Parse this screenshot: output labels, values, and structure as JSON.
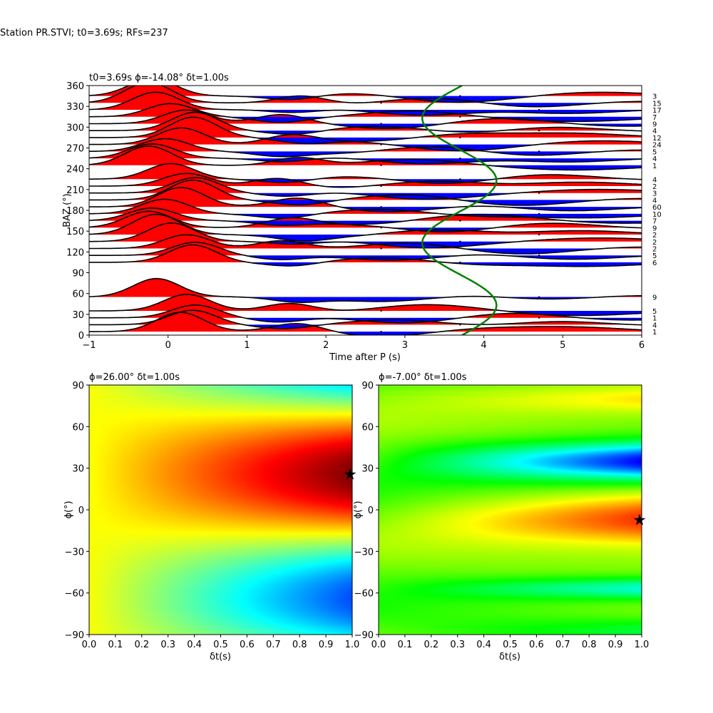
{
  "suptitle": "Station PR.STVI; t0=3.69s; RFs=237",
  "chart_data": [
    {
      "id": "receiver-functions",
      "type": "line",
      "title": "t0=3.69s ϕ=-14.08° δt=1.00s",
      "xlabel": "Time after P (s)",
      "ylabel": "BAZ (°)",
      "xlim": [
        -1,
        6
      ],
      "ylim": [
        0,
        360
      ],
      "xticks": [
        "−1",
        "0",
        "1",
        "2",
        "3",
        "4",
        "5",
        "6"
      ],
      "yticks": [
        "0",
        "30",
        "60",
        "90",
        "120",
        "150",
        "180",
        "210",
        "240",
        "270",
        "300",
        "330",
        "360"
      ],
      "traces": [
        {
          "baz": 5,
          "count": "1"
        },
        {
          "baz": 15,
          "count": "4"
        },
        {
          "baz": 25,
          "count": "1"
        },
        {
          "baz": 35,
          "count": "5"
        },
        {
          "baz": 55,
          "count": "9"
        },
        {
          "baz": 105,
          "count": "6"
        },
        {
          "baz": 115,
          "count": "5"
        },
        {
          "baz": 125,
          "count": "2"
        },
        {
          "baz": 135,
          "count": "2"
        },
        {
          "baz": 145,
          "count": "2"
        },
        {
          "baz": 155,
          "count": "9"
        },
        {
          "baz": 165,
          "count": "7"
        },
        {
          "baz": 175,
          "count": "10"
        },
        {
          "baz": 185,
          "count": "60"
        },
        {
          "baz": 195,
          "count": "4"
        },
        {
          "baz": 205,
          "count": "3"
        },
        {
          "baz": 215,
          "count": "2"
        },
        {
          "baz": 225,
          "count": "4"
        },
        {
          "baz": 245,
          "count": "1"
        },
        {
          "baz": 255,
          "count": "4"
        },
        {
          "baz": 265,
          "count": "5"
        },
        {
          "baz": 275,
          "count": "24"
        },
        {
          "baz": 285,
          "count": "12"
        },
        {
          "baz": 295,
          "count": "4"
        },
        {
          "baz": 305,
          "count": "9"
        },
        {
          "baz": 315,
          "count": "7"
        },
        {
          "baz": 325,
          "count": "17"
        },
        {
          "baz": 335,
          "count": "15"
        },
        {
          "baz": 345,
          "count": "3"
        }
      ],
      "green_curve": {
        "t0": 3.69,
        "amplitude": 0.47,
        "period_deg": 180,
        "phase_deg": -14.08
      },
      "positive_color": "#ff0000",
      "negative_color": "#0000ff",
      "curve_color": "#008000"
    },
    {
      "id": "grid-search-left",
      "type": "heatmap",
      "title": "ϕ=26.00° δt=1.00s",
      "xlabel": "δt(s)",
      "ylabel": "ϕ(°)",
      "xlim": [
        0,
        1
      ],
      "ylim": [
        -90,
        90
      ],
      "xticks": [
        "0.0",
        "0.1",
        "0.2",
        "0.3",
        "0.4",
        "0.5",
        "0.6",
        "0.7",
        "0.8",
        "0.9",
        "1.0"
      ],
      "yticks": [
        "−90",
        "−60",
        "−30",
        "0",
        "30",
        "60",
        "90"
      ],
      "colormap": "jet",
      "best": {
        "dt": 1.0,
        "phi": 26
      }
    },
    {
      "id": "grid-search-right",
      "type": "heatmap",
      "title": "ϕ=-7.00° δt=1.00s",
      "xlabel": "δt(s)",
      "ylabel": "ϕ(°)",
      "xlim": [
        0,
        1
      ],
      "ylim": [
        -90,
        90
      ],
      "xticks": [
        "0.0",
        "0.1",
        "0.2",
        "0.3",
        "0.4",
        "0.5",
        "0.6",
        "0.7",
        "0.8",
        "0.9",
        "1.0"
      ],
      "yticks": [
        "−90",
        "−60",
        "−30",
        "0",
        "30",
        "60",
        "90"
      ],
      "colormap": "hsv",
      "best": {
        "dt": 1.0,
        "phi": -7
      }
    }
  ]
}
